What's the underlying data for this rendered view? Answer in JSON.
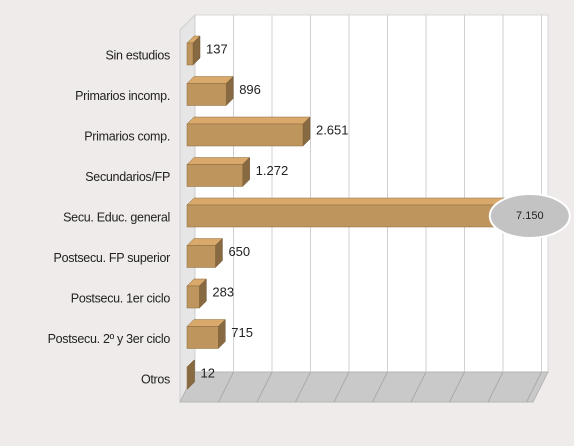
{
  "chart_data": {
    "type": "bar",
    "orientation": "horizontal",
    "categories": [
      "Sin estudios",
      "Primarios incomp.",
      "Primarios comp.",
      "Secundarios/FP",
      "Secu. Educ. general",
      "Postsecu. FP superior",
      "Postsecu.  1er ciclo",
      "Postsecu. 2º y 3er ciclo",
      "Otros"
    ],
    "values": [
      137,
      896,
      2651,
      1272,
      7150,
      650,
      283,
      715,
      12
    ],
    "value_labels": [
      "137",
      "896",
      "2.651",
      "1.272",
      "7.150",
      "650",
      "283",
      "715",
      "12"
    ],
    "color": "#d9a96b",
    "xlim": [
      0,
      8000
    ]
  }
}
